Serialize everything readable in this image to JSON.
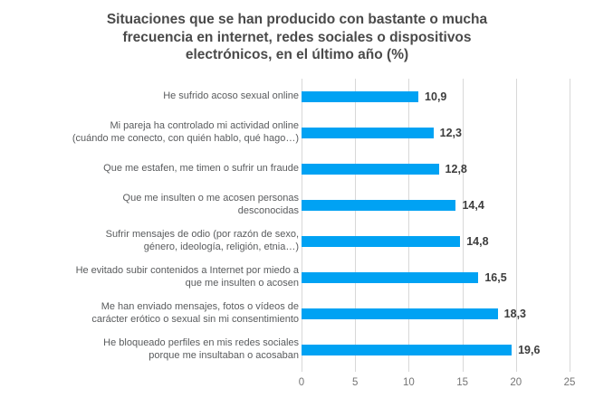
{
  "title": "Situaciones que se han producido con bastante o mucha\nfrecuencia en internet, redes sociales o dispositivos\nelectrónicos, en el último año (%)",
  "chart_data": {
    "type": "bar",
    "orientation": "horizontal",
    "title": "Situaciones que se han producido con bastante o mucha frecuencia en internet, redes sociales o dispositivos electrónicos, en el último año (%)",
    "categories": [
      "He sufrido acoso sexual online",
      "Mi pareja ha controlado mi actividad online\n(cuándo me conecto, con quién hablo, qué hago…)",
      "Que me estafen, me timen o sufrir un fraude",
      "Que me insulten o me acosen personas\ndesconocidas",
      "Sufrir mensajes de odio (por razón de sexo,\ngénero, ideología, religión, etnia…)",
      "He evitado subir contenidos a Internet por miedo a\nque me insulten o acosen",
      "Me han enviado mensajes, fotos o vídeos de\ncarácter erótico o sexual sin mi consentimiento",
      "He bloqueado perfiles en mis redes sociales\nporque me insultaban o acosaban"
    ],
    "values": [
      10.9,
      12.3,
      12.8,
      14.4,
      14.8,
      16.5,
      18.3,
      19.6
    ],
    "value_labels": [
      "10,9",
      "12,3",
      "12,8",
      "14,4",
      "14,8",
      "16,5",
      "18,3",
      "19,6"
    ],
    "xlabel": "",
    "ylabel": "",
    "xlim": [
      0,
      25
    ],
    "x_ticks": [
      0,
      5,
      10,
      15,
      20,
      25
    ],
    "x_tick_labels": [
      "0",
      "5",
      "10",
      "15",
      "20",
      "25"
    ],
    "grid": "vertical gridlines on",
    "legend": "none",
    "bar_color": "#00a2f3"
  },
  "colors": {
    "background": "#ffffff",
    "bar": "#00a2f3",
    "title_text": "#4a4a4a",
    "category_text": "#595b5d",
    "value_text": "#3d3d3d",
    "axis_text": "#757575",
    "gridline": "#d8d8d8"
  }
}
